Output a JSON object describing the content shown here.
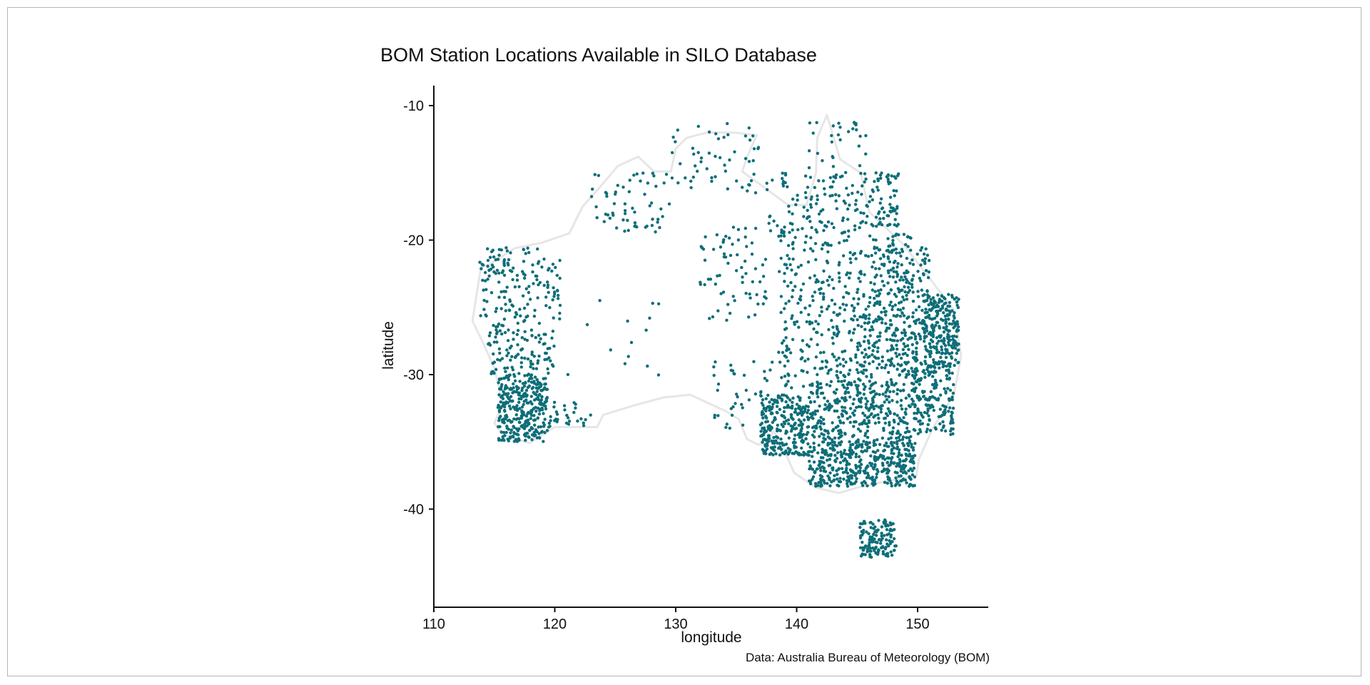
{
  "chart_data": {
    "type": "scatter",
    "title": "BOM Station Locations Available in SILO Database",
    "xlabel": "longitude",
    "ylabel": "latitude",
    "caption": "Data: Australia Bureau of Meteorology (BOM)",
    "xlim": [
      110,
      156
    ],
    "ylim": [
      -46.5,
      -8.5
    ],
    "xticks": [
      110,
      120,
      130,
      140,
      150
    ],
    "yticks": [
      -10,
      -20,
      -30,
      -40
    ],
    "xtick_labels": [
      "110",
      "120",
      "130",
      "140",
      "150"
    ],
    "ytick_labels": [
      "-10",
      "-20",
      "-30",
      "-40"
    ],
    "grid": false,
    "legend": "none",
    "point_color": "#0e6e78",
    "coastline_color": "#e6e6e6",
    "coastline": [
      [
        113.2,
        -26.0
      ],
      [
        113.9,
        -22.0
      ],
      [
        114.6,
        -21.8
      ],
      [
        116.7,
        -20.6
      ],
      [
        118.9,
        -20.2
      ],
      [
        121.2,
        -19.5
      ],
      [
        122.3,
        -17.5
      ],
      [
        123.6,
        -16.2
      ],
      [
        125.2,
        -14.5
      ],
      [
        126.9,
        -13.8
      ],
      [
        128.2,
        -14.9
      ],
      [
        129.6,
        -14.9
      ],
      [
        130.0,
        -13.2
      ],
      [
        130.9,
        -12.4
      ],
      [
        132.6,
        -12.0
      ],
      [
        134.8,
        -12.0
      ],
      [
        136.7,
        -12.2
      ],
      [
        136.0,
        -13.6
      ],
      [
        135.5,
        -14.9
      ],
      [
        137.5,
        -16.2
      ],
      [
        139.3,
        -17.4
      ],
      [
        140.8,
        -17.4
      ],
      [
        141.6,
        -15.0
      ],
      [
        141.7,
        -12.4
      ],
      [
        142.5,
        -10.7
      ],
      [
        143.6,
        -14.0
      ],
      [
        145.3,
        -15.0
      ],
      [
        146.0,
        -17.9
      ],
      [
        148.8,
        -20.3
      ],
      [
        150.7,
        -22.5
      ],
      [
        153.0,
        -25.2
      ],
      [
        153.6,
        -28.6
      ],
      [
        153.0,
        -31.5
      ],
      [
        151.3,
        -33.9
      ],
      [
        150.1,
        -36.3
      ],
      [
        149.9,
        -37.5
      ],
      [
        147.6,
        -37.9
      ],
      [
        145.0,
        -38.4
      ],
      [
        143.5,
        -38.8
      ],
      [
        141.6,
        -38.4
      ],
      [
        139.8,
        -37.3
      ],
      [
        138.9,
        -35.5
      ],
      [
        138.1,
        -34.2
      ],
      [
        137.5,
        -35.1
      ],
      [
        136.8,
        -35.2
      ],
      [
        135.9,
        -34.8
      ],
      [
        135.2,
        -33.3
      ],
      [
        134.1,
        -32.7
      ],
      [
        131.2,
        -31.5
      ],
      [
        129.0,
        -31.7
      ],
      [
        126.5,
        -32.3
      ],
      [
        124.0,
        -33.0
      ],
      [
        123.5,
        -33.9
      ],
      [
        120.0,
        -33.9
      ],
      [
        117.9,
        -35.1
      ],
      [
        115.6,
        -34.4
      ],
      [
        115.0,
        -33.6
      ],
      [
        115.7,
        -32.2
      ],
      [
        115.0,
        -29.5
      ],
      [
        114.0,
        -27.5
      ],
      [
        113.2,
        -26.0
      ]
    ],
    "regions": [
      {
        "lon": [
          113.8,
          120.5
        ],
        "lat": [
          -26.0,
          -20.5
        ],
        "n": 150
      },
      {
        "lon": [
          114.5,
          120.0
        ],
        "lat": [
          -30.0,
          -26.0
        ],
        "n": 110
      },
      {
        "lon": [
          115.3,
          119.4
        ],
        "lat": [
          -35.0,
          -30.0
        ],
        "n": 330
      },
      {
        "lon": [
          119.5,
          123.0
        ],
        "lat": [
          -34.0,
          -32.0
        ],
        "n": 30
      },
      {
        "lon": [
          123.0,
          129.5
        ],
        "lat": [
          -19.5,
          -15.0
        ],
        "n": 60
      },
      {
        "lon": [
          129.5,
          137.0
        ],
        "lat": [
          -16.5,
          -11.3
        ],
        "n": 55
      },
      {
        "lon": [
          132.0,
          137.5
        ],
        "lat": [
          -26.0,
          -19.0
        ],
        "n": 70
      },
      {
        "lon": [
          121.0,
          129.0
        ],
        "lat": [
          -32.0,
          -24.0
        ],
        "n": 14
      },
      {
        "lon": [
          133.0,
          138.0
        ],
        "lat": [
          -34.0,
          -29.0
        ],
        "n": 40
      },
      {
        "lon": [
          137.0,
          141.0
        ],
        "lat": [
          -36.0,
          -31.5
        ],
        "n": 280
      },
      {
        "lon": [
          137.5,
          145.5
        ],
        "lat": [
          -20.0,
          -15.0
        ],
        "n": 120
      },
      {
        "lon": [
          141.0,
          146.0
        ],
        "lat": [
          -15.0,
          -11.0
        ],
        "n": 30
      },
      {
        "lon": [
          145.0,
          148.5
        ],
        "lat": [
          -19.0,
          -15.0
        ],
        "n": 80
      },
      {
        "lon": [
          138.5,
          146.0
        ],
        "lat": [
          -26.0,
          -20.0
        ],
        "n": 150
      },
      {
        "lon": [
          146.0,
          151.0
        ],
        "lat": [
          -25.5,
          -19.5
        ],
        "n": 190
      },
      {
        "lon": [
          150.5,
          153.4
        ],
        "lat": [
          -29.5,
          -24.0
        ],
        "n": 260
      },
      {
        "lon": [
          145.0,
          150.5
        ],
        "lat": [
          -30.5,
          -25.5
        ],
        "n": 220
      },
      {
        "lon": [
          138.5,
          145.0
        ],
        "lat": [
          -31.0,
          -26.0
        ],
        "n": 120
      },
      {
        "lon": [
          141.0,
          149.5
        ],
        "lat": [
          -35.0,
          -30.5
        ],
        "n": 330
      },
      {
        "lon": [
          149.5,
          153.0
        ],
        "lat": [
          -34.5,
          -29.5
        ],
        "n": 170
      },
      {
        "lon": [
          141.0,
          149.8
        ],
        "lat": [
          -38.3,
          -35.0
        ],
        "n": 420
      },
      {
        "lon": [
          145.2,
          148.3
        ],
        "lat": [
          -43.6,
          -40.8
        ],
        "n": 130
      }
    ]
  }
}
